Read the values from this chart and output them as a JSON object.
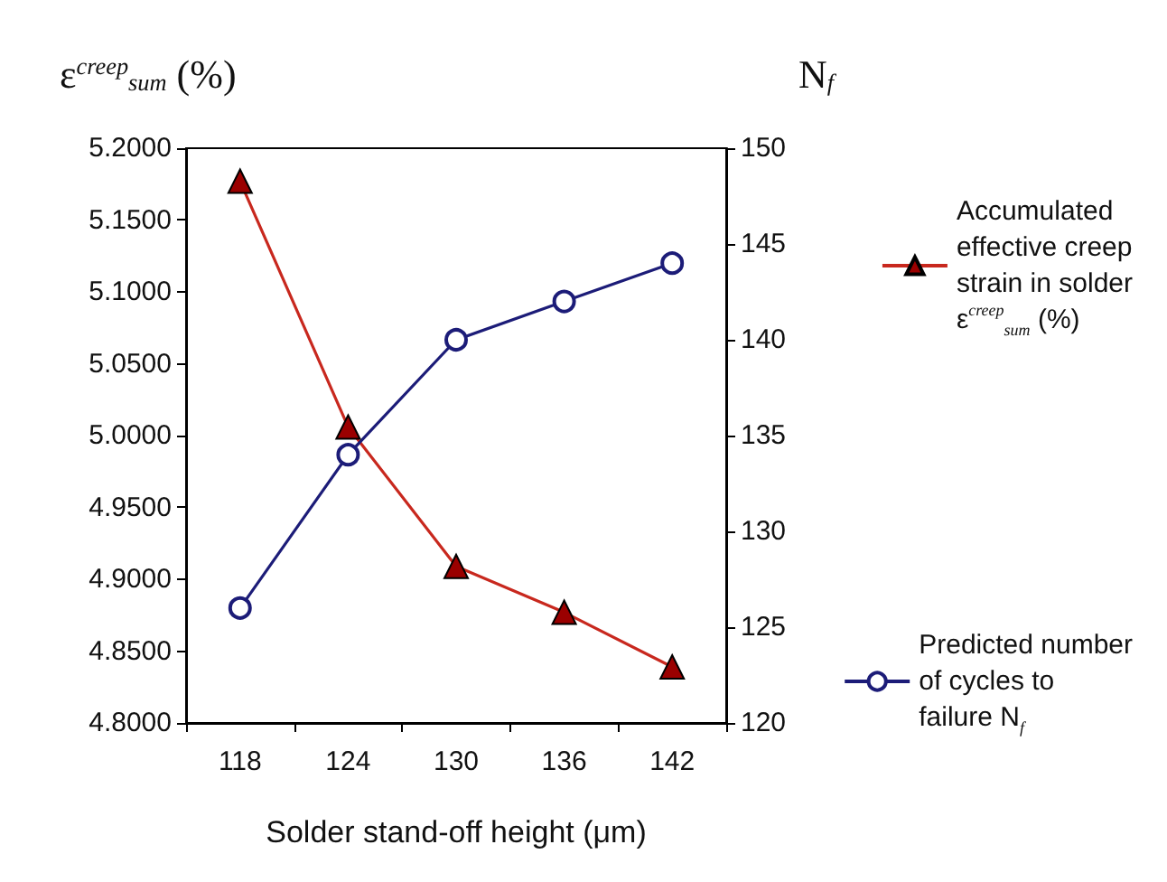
{
  "chart_data": {
    "type": "line",
    "xlabel": "Solder stand-off height (μm)",
    "ylabel": "ε$^{creep}$$_{sum}$ (%)",
    "y2label": "N$_{f}$",
    "categories": [
      "118",
      "124",
      "130",
      "136",
      "142"
    ],
    "series": [
      {
        "name": "Accumulated effective creep strain in solder ε$^{creep}$$_{sum}$ (%)",
        "color": "#c8281e",
        "marker": "triangle",
        "values": [
          5.177,
          5.006,
          4.909,
          4.877,
          4.839
        ]
      },
      {
        "name": "Predicted number of cycles to failure N$_{f}$",
        "color": "#1c1c78",
        "marker": "circle",
        "axis": "y2",
        "values": [
          126,
          134,
          140,
          142,
          144
        ]
      }
    ],
    "ylim": [
      4.8,
      5.2
    ],
    "yticks": [
      {
        "value": 4.8,
        "label": "4.8000"
      },
      {
        "value": 4.85,
        "label": "4.8500"
      },
      {
        "value": 4.9,
        "label": "4.9000"
      },
      {
        "value": 4.95,
        "label": "4.9500"
      },
      {
        "value": 5.0,
        "label": "5.0000"
      },
      {
        "value": 5.05,
        "label": "5.0500"
      },
      {
        "value": 5.1,
        "label": "5.1000"
      },
      {
        "value": 5.15,
        "label": "5.1500"
      },
      {
        "value": 5.2,
        "label": "5.2000"
      }
    ],
    "y2lim": [
      120,
      150
    ],
    "y2ticks": [
      120,
      125,
      130,
      135,
      140,
      145,
      150
    ],
    "grid": false,
    "legend": "right",
    "line_style": "solid"
  }
}
